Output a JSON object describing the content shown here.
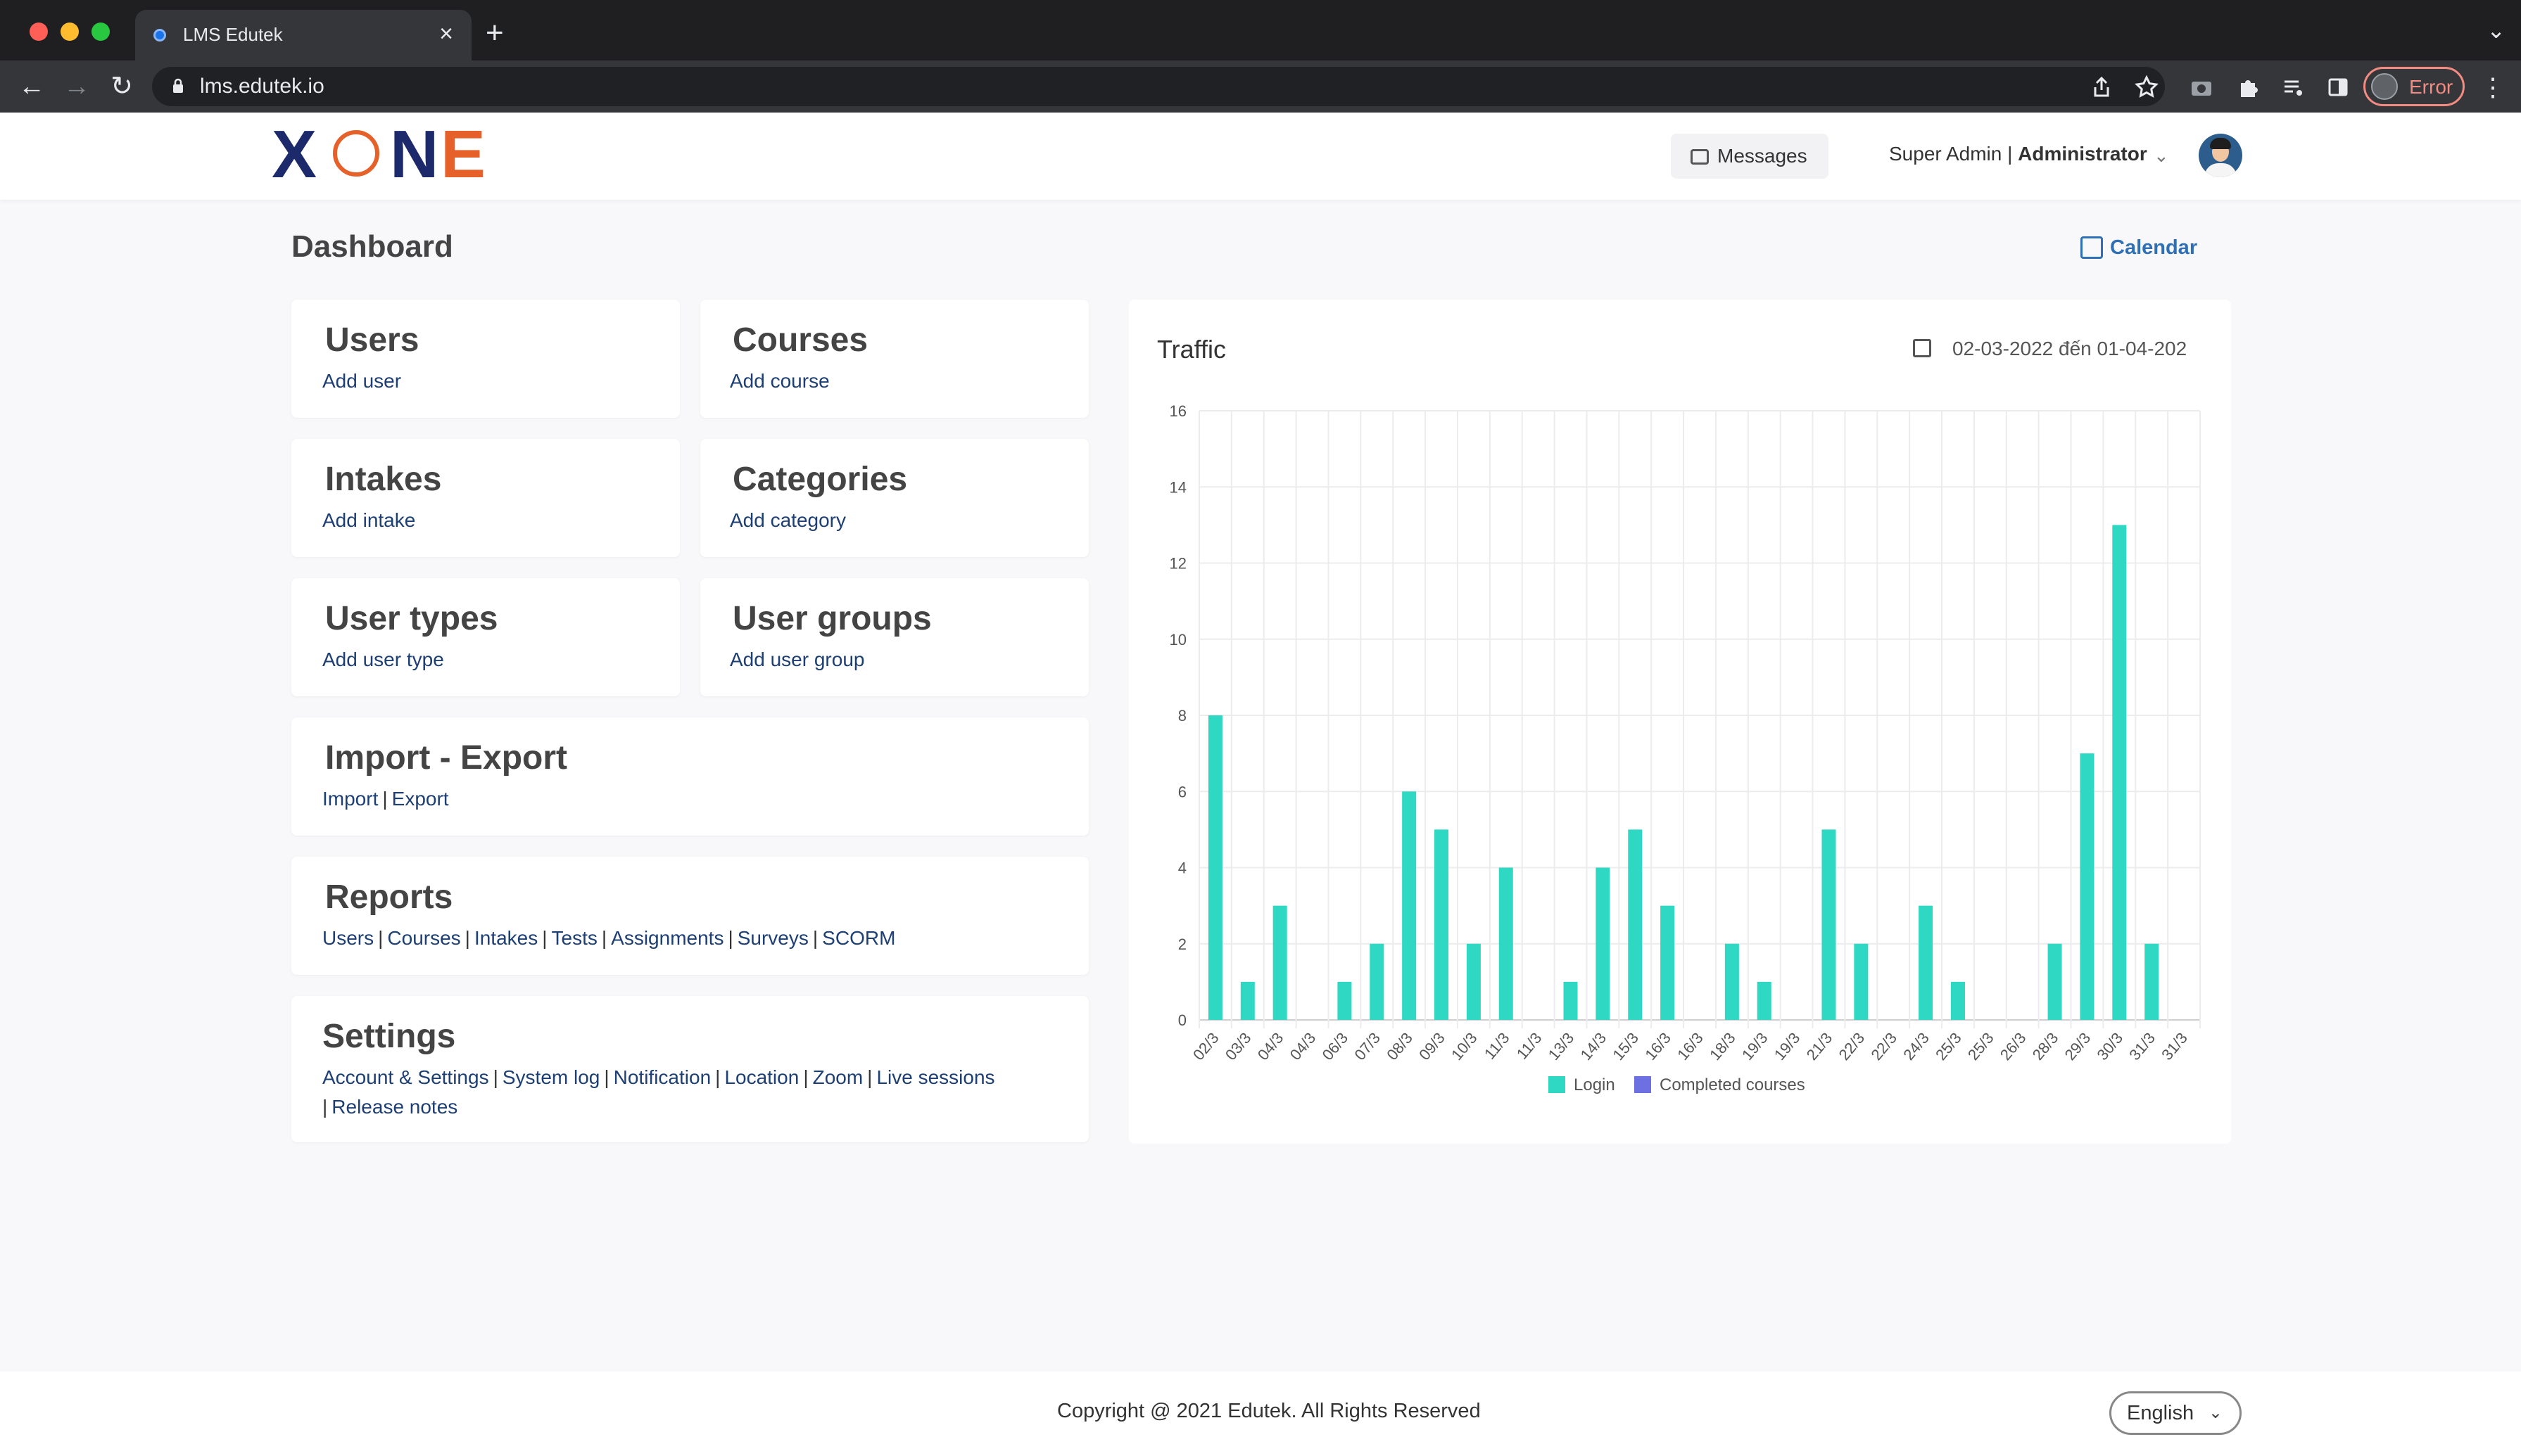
{
  "browser": {
    "tab_title": "LMS Edutek",
    "url": "lms.edutek.io",
    "error_label": "Error"
  },
  "header": {
    "messages_label": "Messages",
    "user_name": "Super Admin",
    "user_role": "Administrator"
  },
  "page": {
    "title": "Dashboard",
    "calendar_label": "Calendar"
  },
  "cards": {
    "users": {
      "title": "Users",
      "link": "Add user"
    },
    "courses": {
      "title": "Courses",
      "link": "Add course"
    },
    "intakes": {
      "title": "Intakes",
      "link": "Add intake"
    },
    "categories": {
      "title": "Categories",
      "link": "Add category"
    },
    "user_types": {
      "title": "User types",
      "link": "Add user type"
    },
    "user_groups": {
      "title": "User groups",
      "link": "Add user group"
    },
    "import_export": {
      "title": "Import - Export",
      "links": [
        "Import",
        "Export"
      ]
    },
    "reports": {
      "title": "Reports",
      "links": [
        "Users",
        "Courses",
        "Intakes",
        "Tests",
        "Assignments",
        "Surveys",
        "SCORM"
      ]
    },
    "settings": {
      "title": "Settings",
      "links": [
        "Account & Settings",
        "System log",
        "Notification",
        "Location",
        "Zoom",
        "Live sessions",
        "Release notes"
      ]
    }
  },
  "traffic": {
    "title": "Traffic",
    "date_range": "02-03-2022 đến 01-04-202"
  },
  "chart_data": {
    "type": "bar",
    "categories": [
      "02/3",
      "03/3",
      "04/3",
      "04/3",
      "06/3",
      "07/3",
      "08/3",
      "09/3",
      "10/3",
      "11/3",
      "11/3",
      "13/3",
      "14/3",
      "15/3",
      "16/3",
      "16/3",
      "18/3",
      "19/3",
      "19/3",
      "21/3",
      "22/3",
      "22/3",
      "24/3",
      "25/3",
      "25/3",
      "26/3",
      "28/3",
      "29/3",
      "30/3",
      "31/3",
      "31/3"
    ],
    "series": [
      {
        "name": "Login",
        "color": "#2ed8c3",
        "values": [
          8,
          1,
          3,
          0,
          1,
          2,
          6,
          5,
          2,
          4,
          0,
          1,
          4,
          5,
          3,
          0,
          2,
          1,
          0,
          5,
          2,
          0,
          3,
          1,
          0,
          0,
          2,
          7,
          13,
          2,
          0
        ]
      },
      {
        "name": "Completed courses",
        "color": "#6c70e0",
        "values": [
          0,
          0,
          0,
          0,
          0,
          0,
          0,
          0,
          0,
          0,
          0,
          0,
          0,
          0,
          0,
          0,
          0,
          0,
          0,
          0,
          0,
          0,
          0,
          0,
          0,
          0,
          0,
          0,
          0,
          0,
          0
        ]
      }
    ],
    "ylim": [
      0,
      16
    ],
    "yticks": [
      0,
      2,
      4,
      6,
      8,
      10,
      12,
      14,
      16
    ],
    "grid": true,
    "legend": "bottom"
  },
  "footer": {
    "copyright": "Copyright @ 2021 Edutek. All Rights Reserved",
    "language": "English"
  }
}
